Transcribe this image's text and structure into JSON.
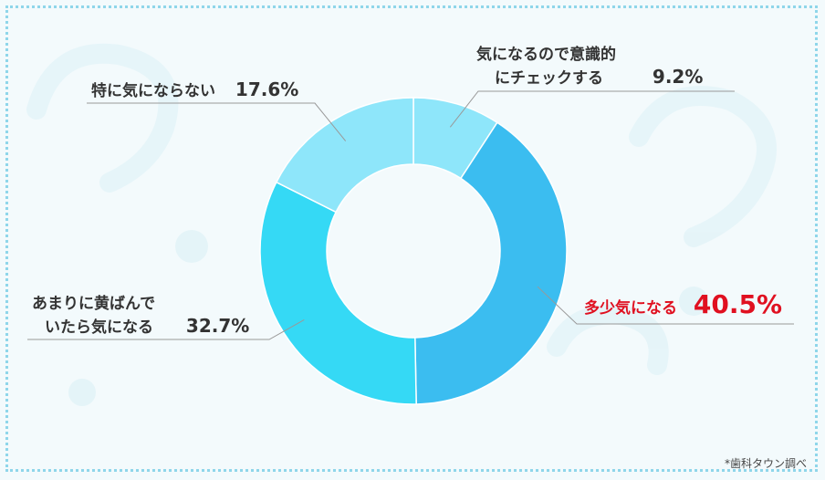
{
  "chart_data": {
    "type": "pie",
    "subtype": "donut",
    "slices": [
      {
        "label": "気になるので意識的にチェックする",
        "label_lines": [
          "気になるので意識的",
          "にチェックする"
        ],
        "value": 9.2,
        "value_text": "9.2%",
        "color": "#8ee6fa"
      },
      {
        "label": "多少気になる",
        "label_lines": [
          "多少気になる"
        ],
        "value": 40.5,
        "value_text": "40.5%",
        "color": "#3bbdf0",
        "highlight": true
      },
      {
        "label": "あまりに黄ばんでいたら気になる",
        "label_lines": [
          "あまりに黄ばんで",
          "いたら気になる"
        ],
        "value": 32.7,
        "value_text": "32.7%",
        "color": "#35d9f5"
      },
      {
        "label": "特に気にならない",
        "label_lines": [
          "特に気にならない"
        ],
        "value": 17.6,
        "value_text": "17.6%",
        "color": "#8ee6fa"
      }
    ],
    "start_angle": "top",
    "direction": "clockwise",
    "highlight_color": "#e01020"
  },
  "source": "*歯科タウン調べ"
}
